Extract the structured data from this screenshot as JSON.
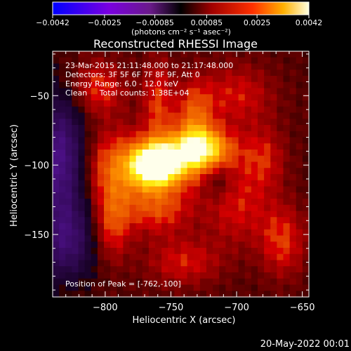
{
  "chart_data": {
    "type": "heatmap",
    "title": "Reconstructed RHESSI Image",
    "xlabel": "Heliocentric X (arcsec)",
    "ylabel": "Heliocentric Y (arcsec)",
    "xlim": [
      -840,
      -645
    ],
    "ylim": [
      -195,
      -18
    ],
    "x_ticks": [
      -800,
      -750,
      -700,
      -650
    ],
    "y_ticks": [
      -50,
      -100,
      -150
    ],
    "x_tick_labels": [
      "−800",
      "−750",
      "−700",
      "−650"
    ],
    "y_tick_labels": [
      "−50",
      "−100",
      "−150"
    ],
    "peak": {
      "x": -762,
      "y": -100
    },
    "colorbar": {
      "range": [
        -0.0042,
        0.0042
      ],
      "ticks": [
        -0.0042,
        -0.0025,
        -0.00085,
        0.00085,
        0.0025,
        0.0042
      ],
      "tick_labels": [
        "−0.0042",
        "−0.0025",
        "−0.00085",
        "0.00085",
        "0.0025",
        "0.0042"
      ],
      "unit_label": "(photons cm⁻² s⁻¹ asec⁻²)"
    },
    "blobs": [
      {
        "x": -762,
        "y": -100,
        "amp": 1.0,
        "sx": 12,
        "sy": 10
      },
      {
        "x": -740,
        "y": -95,
        "amp": 0.45,
        "sx": 20,
        "sy": 14
      },
      {
        "x": -725,
        "y": -88,
        "amp": 0.55,
        "sx": 16,
        "sy": 10
      },
      {
        "x": -732,
        "y": -65,
        "amp": 0.35,
        "sx": 10,
        "sy": 18
      },
      {
        "x": -760,
        "y": -55,
        "amp": 0.3,
        "sx": 8,
        "sy": 22
      },
      {
        "x": -790,
        "y": -100,
        "amp": 0.4,
        "sx": 18,
        "sy": 18
      },
      {
        "x": -795,
        "y": -140,
        "amp": 0.35,
        "sx": 10,
        "sy": 20
      },
      {
        "x": -760,
        "y": -130,
        "amp": 0.35,
        "sx": 18,
        "sy": 14
      },
      {
        "x": -700,
        "y": -130,
        "amp": 0.25,
        "sx": 18,
        "sy": 20
      },
      {
        "x": -665,
        "y": -155,
        "amp": 0.3,
        "sx": 12,
        "sy": 18
      },
      {
        "x": -700,
        "y": -50,
        "amp": 0.25,
        "sx": 20,
        "sy": 16
      },
      {
        "x": -740,
        "y": -170,
        "amp": 0.25,
        "sx": 20,
        "sy": 12
      },
      {
        "x": -805,
        "y": -45,
        "amp": 0.3,
        "sx": 14,
        "sy": 14
      },
      {
        "x": -680,
        "y": -95,
        "amp": 0.25,
        "sx": 12,
        "sy": 16
      }
    ],
    "negative_regions": [
      {
        "x": -835,
        "y": -95,
        "amp": 0.55,
        "sx": 14,
        "sy": 30
      },
      {
        "x": -830,
        "y": -155,
        "amp": 0.4,
        "sx": 16,
        "sy": 20
      },
      {
        "x": -715,
        "y": -110,
        "amp": 0.2,
        "sx": 8,
        "sy": 10
      }
    ]
  },
  "annotations": {
    "time_range": "23-Mar-2015 21:11:48.000 to 21:17:48.000",
    "detectors": "Detectors: 3F 5F 6F 7F 8F 9F, Att 0",
    "energy": "Energy Range: 6.0 - 12.0 keV",
    "clean": "Clean     Total counts: 1.38E+04",
    "peak_text": "Position of Peak = [-762,-100]"
  },
  "footer_date": "20-May-2022 00:01"
}
